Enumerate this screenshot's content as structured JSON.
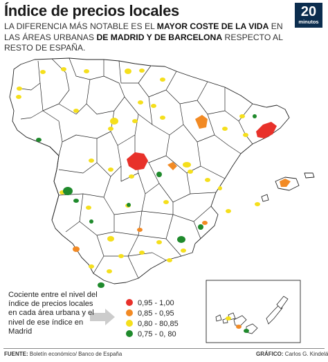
{
  "header": {
    "title": "Índice de precios locales",
    "subtitle_part1": "LA DIFERENCIA MÁS NOTABLE ES EL ",
    "subtitle_bold1": "MAYOR COSTE DE LA VIDA",
    "subtitle_part2": " EN LAS ÁREAS URBANAS ",
    "subtitle_bold2": "DE MADRID Y DE BARCELONA",
    "subtitle_part3": " RESPECTO AL RESTO DE ESPAÑA."
  },
  "logo": {
    "number": "20",
    "word": "minutos"
  },
  "legend": {
    "description": "Cociente entre el nivel del índice de precios locales en cada área urbana y el nivel de ese índice en Madrid",
    "items": [
      {
        "label": "0,95 - 1,00",
        "color": "#e8312a"
      },
      {
        "label": "0,85 - 0,95",
        "color": "#f28a24"
      },
      {
        "label": "0,80 - 80,85",
        "color": "#f5df1c"
      },
      {
        "label": "0,75 - 0, 80",
        "color": "#1f8a2c"
      }
    ]
  },
  "map": {
    "land_color": "#ffffff",
    "border_color": "#222222",
    "arrow_color": "#cccccc"
  },
  "footer": {
    "source_label": "FUENTE:",
    "source_text": " Boletín económico/ Banco de España",
    "credit_label": "GRÁFICO:",
    "credit_text": " Carlos G. Kindelán"
  }
}
